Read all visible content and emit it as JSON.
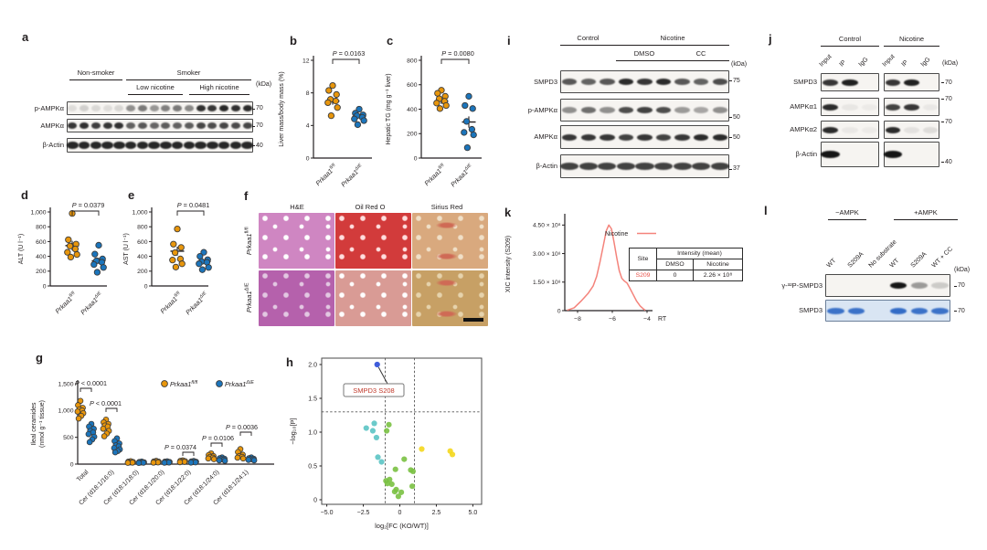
{
  "colors": {
    "wt": "#e8960c",
    "ko": "#1b75bc",
    "dot_stroke": "#3b3b3b",
    "axis": "#231f20",
    "curve_red": "#f4837b",
    "volcano": {
      "highlight": "#2a4bd7",
      "teal": "#5bc4c4",
      "green": "#7ac143",
      "yellow": "#f4d71c",
      "label": "#c0392b"
    }
  },
  "genotypes": {
    "wt_base": "Prkaa1",
    "wt_sup": "fl/fl",
    "ko_base": "Prkaa1",
    "ko_sup": "ΔIE"
  },
  "panels": {
    "a": {
      "label": "a",
      "group1": "Non-smoker",
      "group2": "Smoker",
      "sub1": "Low nicotine",
      "sub2": "High nicotine",
      "kda_unit": "(kDa)",
      "rows": [
        {
          "name": "p-AMPKα",
          "kda": "70",
          "bands": [
            0.1,
            0.16,
            0.12,
            0.1,
            0.13,
            0.45,
            0.55,
            0.42,
            0.52,
            0.55,
            0.48,
            0.88,
            0.85,
            0.92,
            0.88,
            0.9
          ]
        },
        {
          "name": "AMPKα",
          "kda": "70",
          "bands": [
            0.85,
            0.88,
            0.82,
            0.86,
            0.88,
            0.66,
            0.7,
            0.64,
            0.68,
            0.66,
            0.68,
            0.78,
            0.75,
            0.78,
            0.76,
            0.78
          ]
        },
        {
          "name": "β-Actin",
          "kda": "40",
          "bands": [
            0.92,
            0.92,
            0.92,
            0.92,
            0.92,
            0.92,
            0.92,
            0.92,
            0.92,
            0.92,
            0.92,
            0.92,
            0.92,
            0.92,
            0.92,
            0.92
          ]
        }
      ]
    },
    "b": {
      "label": "b"
    },
    "c": {
      "label": "c"
    },
    "d": {
      "label": "d"
    },
    "e": {
      "label": "e"
    },
    "f": {
      "label": "f",
      "columns": [
        "H&E",
        "Oil Red O",
        "Sirius Red"
      ],
      "cells": [
        [
          {
            "base": "#cf86c2",
            "spots": "#ffffff"
          },
          {
            "base": "#d23b3b",
            "spots": "#ffdede"
          },
          {
            "base": "#d9a97e",
            "spots": "#f0e0c8",
            "accent": "#cf6a55"
          }
        ],
        [
          {
            "base": "#b561ac",
            "spots": "#e3c8e2"
          },
          {
            "base": "#d99b95",
            "spots": "#ffffff"
          },
          {
            "base": "#c7a065",
            "spots": "#e6d3ac",
            "accent": "#cf6a55"
          }
        ]
      ]
    },
    "g": {
      "label": "g"
    },
    "h": {
      "label": "h"
    },
    "i": {
      "label": "i",
      "header1": "Control",
      "header2": "Nicotine",
      "sub1": "DMSO",
      "sub2": "CC",
      "kda_unit": "(kDa)",
      "rows": [
        {
          "name": "SMPD3",
          "kda": "75",
          "bands": [
            0.7,
            0.65,
            0.7,
            0.9,
            0.85,
            0.9,
            0.7,
            0.65,
            0.75
          ]
        },
        {
          "name": "p-AMPKα",
          "kda": "50",
          "bands": [
            0.45,
            0.6,
            0.45,
            0.75,
            0.8,
            0.75,
            0.4,
            0.35,
            0.45
          ]
        },
        {
          "name": "AMPKα",
          "kda": "50",
          "bands": [
            0.85,
            0.85,
            0.85,
            0.8,
            0.85,
            0.8,
            0.85,
            0.9,
            0.9
          ]
        },
        {
          "name": "β-Actin",
          "kda": "37",
          "bands": [
            0.8,
            0.8,
            0.8,
            0.8,
            0.8,
            0.8,
            0.8,
            0.8,
            0.8
          ]
        }
      ]
    },
    "j": {
      "label": "j",
      "header1": "Control",
      "header2": "Nicotine",
      "lane_labels": [
        "Input",
        "IP",
        "IgG"
      ],
      "kda_unit": "(kDa)",
      "rows": [
        {
          "name": "SMPD3",
          "kda": "70",
          "bands_ctrl": [
            0.85,
            0.95,
            0
          ],
          "bands_nic": [
            0.85,
            0.95,
            0
          ]
        },
        {
          "name": "AMPKα1",
          "kda": "70",
          "bands_ctrl": [
            0.9,
            0.06,
            0.04
          ],
          "bands_nic": [
            0.8,
            0.85,
            0.05
          ]
        },
        {
          "name": "AMPKα2",
          "kda": "70",
          "bands_ctrl": [
            0.9,
            0.05,
            0.04
          ],
          "bands_nic": [
            0.9,
            0.08,
            0.1
          ]
        },
        {
          "name": "β-Actin",
          "kda": "40",
          "bands_ctrl": [
            1,
            0,
            0
          ],
          "bands_nic": [
            1,
            0,
            0
          ]
        }
      ]
    },
    "k": {
      "label": "k",
      "table": {
        "site_header": "Site",
        "intensity_header": "Intensity (mean)",
        "col1": "DMSO",
        "col2": "Nicotine",
        "site": "S209",
        "dmso": "0",
        "nicotine": "2.26 × 10⁸"
      }
    },
    "l": {
      "label": "l",
      "group1": "−AMPK",
      "group2": "+AMPK",
      "lane_labels": [
        "WT",
        "S209A",
        "No substrate",
        "WT",
        "S209A",
        "WT + CC"
      ],
      "kda_unit": "(kDa)",
      "rows": [
        {
          "name": "γ-³²P-SMPD3",
          "kda": "70",
          "style": "dark",
          "bands": [
            0,
            0,
            0,
            1,
            0.4,
            0.18
          ]
        },
        {
          "name": "SMPD3",
          "kda": "70",
          "style": "blue",
          "bands": [
            0.9,
            0.9,
            0,
            0.95,
            0.9,
            0.9
          ]
        }
      ]
    }
  },
  "chart_data": [
    {
      "id": "b",
      "type": "scatter",
      "ylabel": "Liver mass/body mass (%)",
      "ylim": [
        0,
        12
      ],
      "yticks": [
        {
          "v": 0,
          "l": "0"
        },
        {
          "v": 4,
          "l": "4"
        },
        {
          "v": 8,
          "l": "8"
        },
        {
          "v": 12,
          "l": "12"
        }
      ],
      "p": "P = 0.0163",
      "groups": [
        {
          "genotype": "wt",
          "mean": 7.0,
          "sem": 0.45,
          "values": [
            8.9,
            8.3,
            7.8,
            7.2,
            7.0,
            6.8,
            6.2,
            5.2
          ]
        },
        {
          "genotype": "ko",
          "mean": 5.1,
          "sem": 0.2,
          "values": [
            6.0,
            5.5,
            5.3,
            5.2,
            5.0,
            4.8,
            4.6,
            4.1
          ]
        }
      ]
    },
    {
      "id": "c",
      "type": "scatter",
      "ylabel": "Hepatic TG (mg g⁻¹ liver)",
      "ylim": [
        0,
        800
      ],
      "yticks": [
        {
          "v": 0,
          "l": "0"
        },
        {
          "v": 200,
          "l": "200"
        },
        {
          "v": 400,
          "l": "400"
        },
        {
          "v": 600,
          "l": "600"
        },
        {
          "v": 800,
          "l": "800"
        }
      ],
      "p": "P = 0.0080",
      "groups": [
        {
          "genotype": "wt",
          "mean": 465,
          "sem": 22,
          "values": [
            555,
            530,
            505,
            485,
            465,
            450,
            430,
            405
          ]
        },
        {
          "genotype": "ko",
          "mean": 295,
          "sem": 46,
          "values": [
            505,
            430,
            405,
            300,
            235,
            210,
            190,
            85
          ]
        }
      ]
    },
    {
      "id": "d",
      "type": "scatter",
      "ylabel": "ALT (U l⁻¹)",
      "ylim": [
        0,
        1000
      ],
      "yticks": [
        {
          "v": 0,
          "l": "0"
        },
        {
          "v": 200,
          "l": "200"
        },
        {
          "v": 400,
          "l": "400"
        },
        {
          "v": 600,
          "l": "600"
        },
        {
          "v": 800,
          "l": "800"
        },
        {
          "v": 1000,
          "l": "1,000"
        }
      ],
      "p": "P = 0.0379",
      "groups": [
        {
          "genotype": "wt",
          "mean": 545,
          "sem": 65,
          "values": [
            980,
            625,
            565,
            540,
            500,
            455,
            425,
            390
          ]
        },
        {
          "genotype": "ko",
          "mean": 340,
          "sem": 40,
          "values": [
            550,
            430,
            365,
            340,
            320,
            290,
            250,
            185
          ]
        }
      ]
    },
    {
      "id": "e",
      "type": "scatter",
      "ylabel": "AST (U l⁻¹)",
      "ylim": [
        0,
        1000
      ],
      "yticks": [
        {
          "v": 0,
          "l": "0"
        },
        {
          "v": 200,
          "l": "200"
        },
        {
          "v": 400,
          "l": "400"
        },
        {
          "v": 600,
          "l": "600"
        },
        {
          "v": 800,
          "l": "800"
        },
        {
          "v": 1000,
          "l": "1,000"
        }
      ],
      "p": "P = 0.0481",
      "groups": [
        {
          "genotype": "wt",
          "mean": 470,
          "sem": 60,
          "values": [
            770,
            565,
            520,
            450,
            365,
            350,
            300,
            255
          ]
        },
        {
          "genotype": "ko",
          "mean": 330,
          "sem": 28,
          "values": [
            455,
            400,
            355,
            330,
            320,
            300,
            250,
            220
          ]
        }
      ]
    },
    {
      "id": "g",
      "type": "scatter-grouped",
      "ylabel_lines": [
        "Ileal ceramides",
        "(nmol g⁻¹ tissue)"
      ],
      "ylim": [
        0,
        1500
      ],
      "yticks": [
        {
          "v": 0,
          "l": "0"
        },
        {
          "v": 500,
          "l": "500"
        },
        {
          "v": 1000,
          "l": "1,000"
        },
        {
          "v": 1500,
          "l": "1,500"
        }
      ],
      "categories": [
        "Total",
        "Cer (d18:1/16:0)",
        "Cer (d18:1/18:0)",
        "Cer (d18:1/20:0)",
        "Cer (d18:1/22:0)",
        "Cer (d18:1/24:0)",
        "Cer (d18:1/24:1)"
      ],
      "series": [
        {
          "genotype": "wt",
          "values": [
            [
              1180,
              1100,
              1050,
              1020,
              1000,
              980,
              950,
              900,
              850
            ],
            [
              830,
              780,
              750,
              720,
              700,
              660,
              620,
              570,
              520
            ],
            [
              55,
              45,
              40,
              32,
              28,
              24
            ],
            [
              60,
              50,
              45,
              38,
              32,
              28
            ],
            [
              70,
              62,
              55,
              48,
              42,
              36
            ],
            [
              200,
              170,
              150,
              135,
              120,
              105,
              92
            ],
            [
              280,
              225,
              175,
              150,
              135,
              120,
              105
            ]
          ]
        },
        {
          "genotype": "ko",
          "values": [
            [
              750,
              700,
              660,
              620,
              590,
              560,
              510,
              460,
              410
            ],
            [
              480,
              430,
              385,
              350,
              330,
              300,
              275,
              245,
              220
            ],
            [
              48,
              40,
              34,
              30,
              26,
              22
            ],
            [
              52,
              45,
              40,
              34,
              30,
              26
            ],
            [
              58,
              50,
              44,
              38,
              33,
              29
            ],
            [
              125,
              110,
              100,
              90,
              80,
              70,
              62
            ],
            [
              125,
              110,
              100,
              92,
              85,
              78,
              70
            ]
          ]
        }
      ],
      "p_annotations": [
        {
          "cat": 0,
          "text": "P < 0.0001"
        },
        {
          "cat": 1,
          "text": "P < 0.0001"
        },
        {
          "cat": 4,
          "text": "P = 0.0374"
        },
        {
          "cat": 5,
          "text": "P = 0.0106"
        },
        {
          "cat": 6,
          "text": "P = 0.0036"
        }
      ]
    },
    {
      "id": "h",
      "type": "scatter-volcano",
      "xlabel": "log₂[FC (KO/WT)]",
      "ylabel": "−log₁₀[P]",
      "xlim": [
        -5.35,
        5.6
      ],
      "ylim": [
        0,
        2.07
      ],
      "xticks": [
        {
          "v": -5,
          "l": "−5.0"
        },
        {
          "v": -2.5,
          "l": "−2.5"
        },
        {
          "v": 0,
          "l": "0"
        },
        {
          "v": 2.5,
          "l": "2.5"
        },
        {
          "v": 5,
          "l": "5.0"
        }
      ],
      "yticks": [
        {
          "v": 0,
          "l": "0"
        },
        {
          "v": 0.5,
          "l": "0.5"
        },
        {
          "v": 1,
          "l": "1.0"
        },
        {
          "v": 1.5,
          "l": "1.5"
        },
        {
          "v": 2,
          "l": "2.0"
        }
      ],
      "hline": 1.3,
      "vlines": [
        -1,
        1
      ],
      "annotation": {
        "text": "SMPD3 S208",
        "x": -1.55,
        "y": 2.0
      },
      "series": [
        {
          "name": "highlight",
          "points": [
            [
              -1.55,
              2.0
            ]
          ]
        },
        {
          "name": "teal",
          "points": [
            [
              -2.3,
              1.06
            ],
            [
              -1.75,
              1.13
            ],
            [
              -1.85,
              1.02
            ],
            [
              -1.6,
              0.92
            ],
            [
              -1.5,
              0.63
            ],
            [
              -1.25,
              0.56
            ]
          ]
        },
        {
          "name": "green",
          "points": [
            [
              -0.75,
              1.11
            ],
            [
              -0.9,
              1.02
            ],
            [
              0.3,
              0.6
            ],
            [
              -0.3,
              0.45
            ],
            [
              0.75,
              0.44
            ],
            [
              0.9,
              0.42
            ],
            [
              -0.95,
              0.28
            ],
            [
              -0.85,
              0.24
            ],
            [
              -0.7,
              0.3
            ],
            [
              -0.55,
              0.23
            ],
            [
              -0.25,
              0.15
            ],
            [
              -0.35,
              0.12
            ],
            [
              0.1,
              0.11
            ],
            [
              -0.1,
              0.05
            ],
            [
              0.85,
              0.2
            ]
          ]
        },
        {
          "name": "yellow",
          "points": [
            [
              1.5,
              0.75
            ],
            [
              3.45,
              0.72
            ],
            [
              3.6,
              0.67
            ]
          ]
        }
      ]
    },
    {
      "id": "k",
      "type": "line",
      "ylabel": "XIC intensity (S209)",
      "legend": "Nicotine",
      "xlabel": "RT",
      "ylim": [
        0,
        4.9
      ],
      "unit": "×10⁸",
      "yticks": [
        {
          "v": 0,
          "l": "0"
        },
        {
          "v": 1.5,
          "l": "1.50 × 10⁸"
        },
        {
          "v": 3,
          "l": "3.00 × 10⁸"
        },
        {
          "v": 4.5,
          "l": "4.50 × 10⁸"
        }
      ],
      "xticks": [
        {
          "v": -8,
          "l": "−8"
        },
        {
          "v": -6,
          "l": "−6"
        },
        {
          "v": -4,
          "l": "−4"
        }
      ],
      "points": [
        [
          -8.6,
          0.02
        ],
        [
          -8.2,
          0.15
        ],
        [
          -7.8,
          0.5
        ],
        [
          -7.4,
          0.9
        ],
        [
          -7.1,
          1.3
        ],
        [
          -6.9,
          1.8
        ],
        [
          -6.7,
          2.6
        ],
        [
          -6.5,
          3.5
        ],
        [
          -6.35,
          4.2
        ],
        [
          -6.2,
          4.5
        ],
        [
          -6.05,
          4.3
        ],
        [
          -5.9,
          3.6
        ],
        [
          -5.75,
          2.8
        ],
        [
          -5.6,
          2.1
        ],
        [
          -5.45,
          1.7
        ],
        [
          -5.3,
          1.55
        ],
        [
          -5.15,
          1.45
        ],
        [
          -5.0,
          1.2
        ],
        [
          -4.8,
          0.85
        ],
        [
          -4.6,
          0.5
        ],
        [
          -4.4,
          0.25
        ],
        [
          -4.2,
          0.08
        ],
        [
          -4.1,
          0.02
        ]
      ]
    }
  ]
}
